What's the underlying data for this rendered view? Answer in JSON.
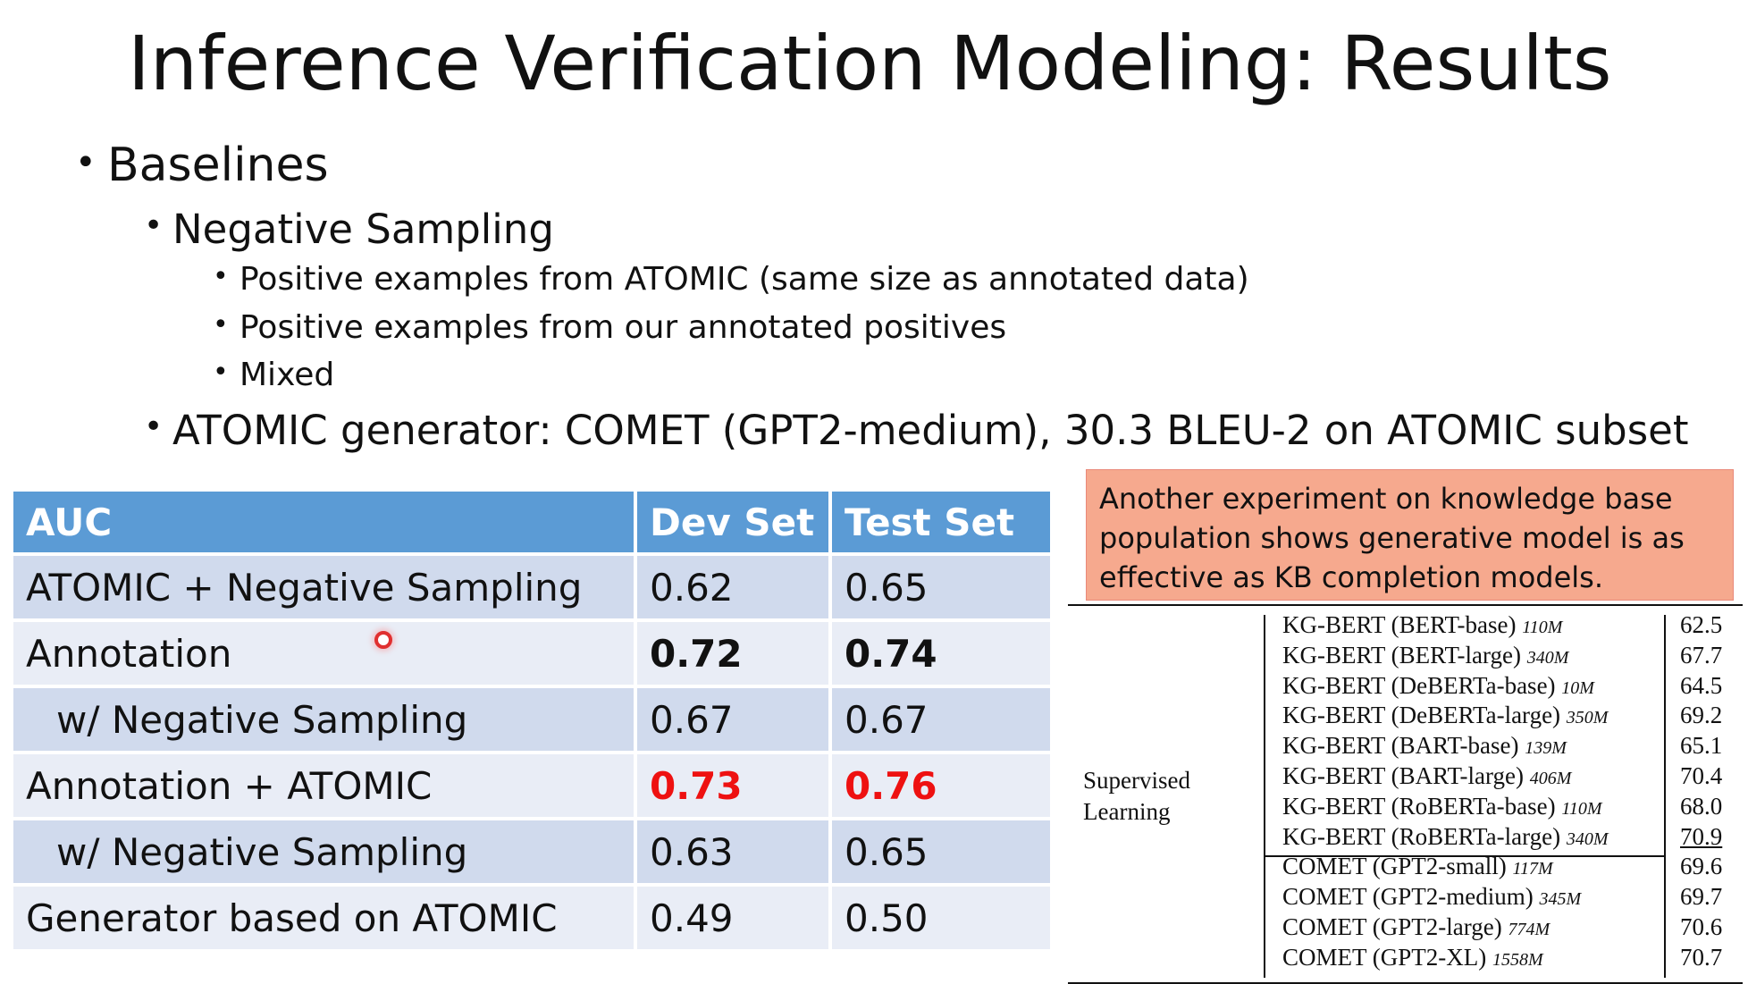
{
  "title": "Inference Verification Modeling: Results",
  "bullets": {
    "baselines": "Baselines",
    "negative_sampling": "Negative Sampling",
    "neg_items": [
      "Positive examples from ATOMIC (same size as annotated data)",
      "Positive examples from our annotated positives",
      "Mixed"
    ],
    "generator": "ATOMIC generator: COMET (GPT2-medium), 30.3 BLEU-2 on ATOMIC subset"
  },
  "auc_table": {
    "headers": [
      "AUC",
      "Dev Set",
      "Test Set"
    ],
    "rows": [
      {
        "label": "ATOMIC + Negative Sampling",
        "dev": "0.62",
        "test": "0.65"
      },
      {
        "label": "Annotation",
        "dev": "0.72",
        "test": "0.74"
      },
      {
        "label": "w/ Negative Sampling",
        "dev": "0.67",
        "test": "0.67"
      },
      {
        "label": "Annotation + ATOMIC",
        "dev": "0.73",
        "test": "0.76"
      },
      {
        "label": "w/ Negative Sampling",
        "dev": "0.63",
        "test": "0.65"
      },
      {
        "label": "Generator based on ATOMIC",
        "dev": "0.49",
        "test": "0.50"
      }
    ],
    "highlight_color": "#ee1111",
    "header_color": "#5b9bd5"
  },
  "callout": {
    "text": "Another experiment on knowledge base population shows generative model is as effective as KB completion models.",
    "color": "#f6a98e"
  },
  "kb_table": {
    "group_label_1": "Supervised",
    "group_label_2": "Learning",
    "rows": [
      {
        "model": "KG-BERT (BERT-base)",
        "size": "110M",
        "score": "62.5"
      },
      {
        "model": "KG-BERT (BERT-large)",
        "size": "340M",
        "score": "67.7"
      },
      {
        "model": "KG-BERT (DeBERTa-base)",
        "size": "10M",
        "score": "64.5"
      },
      {
        "model": "KG-BERT (DeBERTa-large)",
        "size": "350M",
        "score": "69.2"
      },
      {
        "model": "KG-BERT (BART-base)",
        "size": "139M",
        "score": "65.1"
      },
      {
        "model": "KG-BERT (BART-large)",
        "size": "406M",
        "score": "70.4"
      },
      {
        "model": "KG-BERT (RoBERTa-base)",
        "size": "110M",
        "score": "68.0"
      },
      {
        "model": "KG-BERT (RoBERTa-large)",
        "size": "340M",
        "score": "70.9"
      },
      {
        "model": "COMET (GPT2-small)",
        "size": "117M",
        "score": "69.6"
      },
      {
        "model": "COMET (GPT2-medium)",
        "size": "345M",
        "score": "69.7"
      },
      {
        "model": "COMET (GPT2-large)",
        "size": "774M",
        "score": "70.6"
      },
      {
        "model": "COMET (GPT2-XL)",
        "size": "1558M",
        "score": "70.7"
      }
    ]
  }
}
